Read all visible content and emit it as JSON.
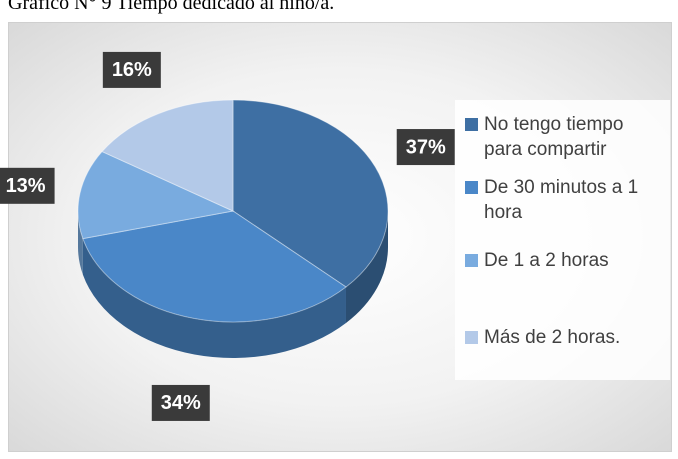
{
  "chart_data": {
    "type": "pie",
    "title": "Gráfico N° 9 Tiempo dedicado al niño/a.",
    "categories": [
      "No tengo tiempo para compartir",
      "De 30 minutos a 1 hora",
      "De 1 a 2 horas",
      "Más de 2 horas."
    ],
    "values": [
      37,
      34,
      13,
      16
    ],
    "value_labels": [
      "37%",
      "34%",
      "13%",
      "16%"
    ],
    "colors": [
      "#3e6fa3",
      "#4a87c8",
      "#79abdf",
      "#b3c9e8"
    ],
    "legend": "right"
  }
}
